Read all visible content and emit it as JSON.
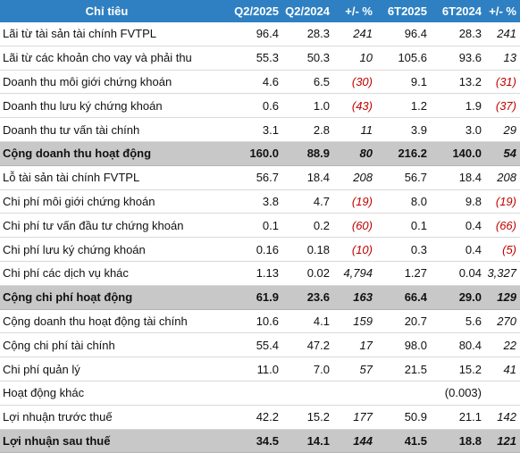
{
  "header": {
    "label": "Chỉ tiêu",
    "col1": "Q2/2025",
    "col2": "Q2/2024",
    "col3": "+/- %",
    "col4": "6T2025",
    "col5": "6T2024",
    "col6": "+/- %"
  },
  "rows": [
    {
      "label": "Lãi từ tài sản tài chính FVTPL",
      "q2025": "96.4",
      "q2024": "28.3",
      "qpct": "241",
      "h2025": "96.4",
      "h2024": "28.3",
      "hpct": "241"
    },
    {
      "label": "Lãi từ các khoản cho vay và phải thu",
      "q2025": "55.3",
      "q2024": "50.3",
      "qpct": "10",
      "h2025": "105.6",
      "h2024": "93.6",
      "hpct": "13"
    },
    {
      "label": "Doanh thu môi giới chứng khoán",
      "q2025": "4.6",
      "q2024": "6.5",
      "qpct": "(30)",
      "h2025": "9.1",
      "h2024": "13.2",
      "hpct": "(31)"
    },
    {
      "label": "Doanh thu lưu ký chứng khoán",
      "q2025": "0.6",
      "q2024": "1.0",
      "qpct": "(43)",
      "h2025": "1.2",
      "h2024": "1.9",
      "hpct": "(37)"
    },
    {
      "label": "Doanh thu tư vấn tài chính",
      "q2025": "3.1",
      "q2024": "2.8",
      "qpct": "11",
      "h2025": "3.9",
      "h2024": "3.0",
      "hpct": "29"
    },
    {
      "label": "Cộng doanh thu hoạt động",
      "q2025": "160.0",
      "q2024": "88.9",
      "qpct": "80",
      "h2025": "216.2",
      "h2024": "140.0",
      "hpct": "54",
      "total": true
    },
    {
      "label": "Lỗ tài sản tài chính FVTPL",
      "q2025": "56.7",
      "q2024": "18.4",
      "qpct": "208",
      "h2025": "56.7",
      "h2024": "18.4",
      "hpct": "208"
    },
    {
      "label": "Chi phí môi giới chứng khoán",
      "q2025": "3.8",
      "q2024": "4.7",
      "qpct": "(19)",
      "h2025": "8.0",
      "h2024": "9.8",
      "hpct": "(19)"
    },
    {
      "label": "Chi phí tư vấn đầu tư chứng khoán",
      "q2025": "0.1",
      "q2024": "0.2",
      "qpct": "(60)",
      "h2025": "0.1",
      "h2024": "0.4",
      "hpct": "(66)"
    },
    {
      "label": "Chi phí lưu ký chứng khoán",
      "q2025": "0.16",
      "q2024": "0.18",
      "qpct": "(10)",
      "h2025": "0.3",
      "h2024": "0.4",
      "hpct": "(5)"
    },
    {
      "label": "Chi phí các dịch vụ khác",
      "q2025": "1.13",
      "q2024": "0.02",
      "qpct": "4,794",
      "h2025": "1.27",
      "h2024": "0.04",
      "hpct": "3,327"
    },
    {
      "label": "Cộng chi phí hoạt động",
      "q2025": "61.9",
      "q2024": "23.6",
      "qpct": "163",
      "h2025": "66.4",
      "h2024": "29.0",
      "hpct": "129",
      "total": true
    },
    {
      "label": "Cộng doanh thu hoạt động tài chính",
      "q2025": "10.6",
      "q2024": "4.1",
      "qpct": "159",
      "h2025": "20.7",
      "h2024": "5.6",
      "hpct": "270"
    },
    {
      "label": "Cộng chi phí tài chính",
      "q2025": "55.4",
      "q2024": "47.2",
      "qpct": "17",
      "h2025": "98.0",
      "h2024": "80.4",
      "hpct": "22"
    },
    {
      "label": "Chi phí quản lý",
      "q2025": "11.0",
      "q2024": "7.0",
      "qpct": "57",
      "h2025": "21.5",
      "h2024": "15.2",
      "hpct": "41"
    },
    {
      "label": "Hoạt động khác",
      "q2025": "",
      "q2024": "",
      "qpct": "",
      "h2025": "",
      "h2024": "(0.003)",
      "hpct": ""
    },
    {
      "label": "Lợi nhuận trước thuế",
      "q2025": "42.2",
      "q2024": "15.2",
      "qpct": "177",
      "h2025": "50.9",
      "h2024": "21.1",
      "hpct": "142"
    },
    {
      "label": "Lợi nhuận sau thuế",
      "q2025": "34.5",
      "q2024": "14.1",
      "qpct": "144",
      "h2025": "41.5",
      "h2024": "18.8",
      "hpct": "121",
      "total": true
    }
  ],
  "colors": {
    "header_bg": "#2e80c2",
    "total_bg": "#c8c8c8",
    "negative": "#c00000"
  }
}
